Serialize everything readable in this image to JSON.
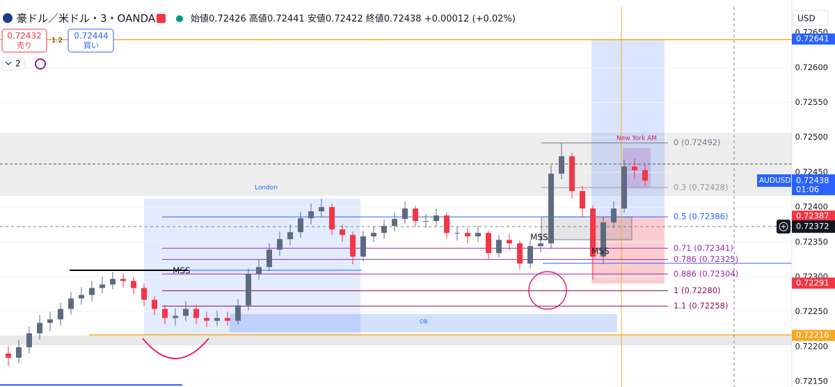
{
  "header": {
    "symbol_title": "豪ドル／米ドル・3・OANDA",
    "open_label": "始値",
    "open": "0.72426",
    "high_label": "高値",
    "high": "0.72441",
    "low_label": "安値",
    "low": "0.72422",
    "close_label": "終値",
    "close": "0.72438",
    "change": "+0.00012",
    "change_pct": "(+0.02%)"
  },
  "trade": {
    "sell_price": "0.72432",
    "sell_label": "売り",
    "spread": "1.2",
    "buy_price": "0.72444",
    "buy_label": "買い",
    "interval": "2",
    "currency": "USD"
  },
  "chart_data": {
    "type": "candlestick",
    "up_color": "#5d6a82",
    "down_color": "#f23645",
    "open": [
      0.7219,
      0.72184,
      0.72199,
      0.72219,
      0.72234,
      0.72239,
      0.72254,
      0.72269,
      0.72274,
      0.72284,
      0.72289,
      0.72297,
      0.72294,
      0.72284,
      0.72267,
      0.72254,
      0.72241,
      0.72244,
      0.72254,
      0.72241,
      0.72237,
      0.72241,
      0.72237,
      0.72259,
      0.72304,
      0.72314,
      0.72339,
      0.72354,
      0.72364,
      0.72384,
      0.72394,
      0.724,
      0.72368,
      0.7236,
      0.72329,
      0.72358,
      0.72363,
      0.72373,
      0.72383,
      0.72398,
      0.7238,
      0.7238,
      0.72388,
      0.72363,
      0.72363,
      0.72358,
      0.72363,
      0.72334,
      0.72353,
      0.72348,
      0.72319,
      0.72344,
      0.72348,
      0.72448,
      0.72473,
      0.72423,
      0.72398,
      0.72329,
      0.72378,
      0.72398,
      0.72458,
      0.72453
    ],
    "high": [
      0.722,
      0.7221,
      0.72229,
      0.72245,
      0.7225,
      0.72263,
      0.72278,
      0.72285,
      0.72294,
      0.723,
      0.72307,
      0.72305,
      0.723,
      0.7229,
      0.72272,
      0.7226,
      0.72255,
      0.72265,
      0.7226,
      0.7225,
      0.72252,
      0.7225,
      0.72268,
      0.72312,
      0.72325,
      0.72348,
      0.72365,
      0.72375,
      0.72393,
      0.72405,
      0.72412,
      0.72405,
      0.72375,
      0.72365,
      0.72366,
      0.72372,
      0.72382,
      0.72392,
      0.72408,
      0.72402,
      0.7239,
      0.72398,
      0.72392,
      0.72372,
      0.7237,
      0.72373,
      0.72366,
      0.7236,
      0.72362,
      0.72352,
      0.72352,
      0.72362,
      0.7246,
      0.72492,
      0.72478,
      0.7243,
      0.72402,
      0.72386,
      0.72408,
      0.72468,
      0.7247,
      0.72462
    ],
    "low": [
      0.72172,
      0.72176,
      0.7219,
      0.7221,
      0.72222,
      0.7223,
      0.72246,
      0.7226,
      0.72265,
      0.72276,
      0.72282,
      0.72285,
      0.72275,
      0.72258,
      0.72245,
      0.72232,
      0.7223,
      0.72236,
      0.72232,
      0.72228,
      0.7223,
      0.7223,
      0.72232,
      0.72252,
      0.72296,
      0.72308,
      0.7233,
      0.72345,
      0.72356,
      0.72375,
      0.72385,
      0.7236,
      0.7235,
      0.72318,
      0.72322,
      0.7235,
      0.72355,
      0.72365,
      0.72376,
      0.72372,
      0.7237,
      0.72373,
      0.72355,
      0.72352,
      0.72348,
      0.7235,
      0.72325,
      0.72328,
      0.72338,
      0.7231,
      0.72312,
      0.72335,
      0.7234,
      0.7244,
      0.72412,
      0.72385,
      0.72296,
      0.72318,
      0.7237,
      0.72392,
      0.7244,
      0.7243
    ],
    "close": [
      0.72184,
      0.72199,
      0.72219,
      0.72234,
      0.72239,
      0.72254,
      0.72269,
      0.72274,
      0.72284,
      0.72289,
      0.72297,
      0.72294,
      0.72284,
      0.72267,
      0.72254,
      0.72241,
      0.72244,
      0.72254,
      0.72241,
      0.72237,
      0.72241,
      0.72237,
      0.72259,
      0.72304,
      0.72314,
      0.72339,
      0.72354,
      0.72364,
      0.72384,
      0.72394,
      0.724,
      0.72368,
      0.7236,
      0.72329,
      0.72358,
      0.72363,
      0.72373,
      0.72383,
      0.72398,
      0.7238,
      0.7238,
      0.72388,
      0.72363,
      0.72363,
      0.72358,
      0.72363,
      0.72334,
      0.72353,
      0.72348,
      0.72319,
      0.72344,
      0.72348,
      0.72448,
      0.72473,
      0.72423,
      0.72398,
      0.72329,
      0.72378,
      0.72398,
      0.72458,
      0.72453,
      0.72438
    ],
    "ylim": [
      0.72142,
      0.72697
    ],
    "yticks": [
      {
        "value": 0.7215,
        "label": "0.72150"
      },
      {
        "value": 0.722,
        "label": "0.72200"
      },
      {
        "value": 0.7225,
        "label": "0.72250"
      },
      {
        "value": 0.723,
        "label": "0.72300"
      },
      {
        "value": 0.7235,
        "label": "0.72350"
      },
      {
        "value": 0.724,
        "label": "0.72400"
      },
      {
        "value": 0.7245,
        "label": "0.72450"
      },
      {
        "value": 0.725,
        "label": "0.72500"
      },
      {
        "value": 0.7255,
        "label": "0.72550"
      },
      {
        "value": 0.726,
        "label": "0.72600"
      },
      {
        "value": 0.7265,
        "label": "0.72650"
      }
    ],
    "grid": true,
    "fib_levels": [
      {
        "label": "0 (0.72492)",
        "price": 0.72492,
        "color": "#787b86"
      },
      {
        "label": "0.3 (0.72428)",
        "price": 0.72428,
        "color": "#9598a1"
      },
      {
        "label": "0.5 (0.72386)",
        "price": 0.72386,
        "color": "#2962ff"
      },
      {
        "label": "0.71 (0.72341)",
        "price": 0.72341,
        "color": "#9c27b0"
      },
      {
        "label": "0.786 (0.72325)",
        "price": 0.72325,
        "color": "#9c27b0"
      },
      {
        "label": "0.886 (0.72304)",
        "price": 0.72304,
        "color": "#9c27b0"
      },
      {
        "label": "1 (0.72280)",
        "price": 0.7228,
        "color": "#880e4f"
      },
      {
        "label": "1.1 (0.72258)",
        "price": 0.72258,
        "color": "#880e4f"
      }
    ],
    "price_tags": [
      {
        "value": 0.72641,
        "color": "#2962ff"
      },
      {
        "value": 0.72387,
        "color": "#f23645"
      },
      {
        "value": 0.72291,
        "color": "#f23645"
      },
      {
        "value": 0.72216,
        "color": "#f9a825"
      }
    ],
    "last": {
      "symbol": "AUDUSD",
      "value": 0.72438,
      "countdown": "01:06"
    },
    "crosshair": 0.72372,
    "annotations": {
      "london": "London",
      "ny": "New York AM",
      "mss_1": "MSS",
      "mss_2": "MSS",
      "mss_3": "MSS",
      "ob": "OB"
    }
  }
}
